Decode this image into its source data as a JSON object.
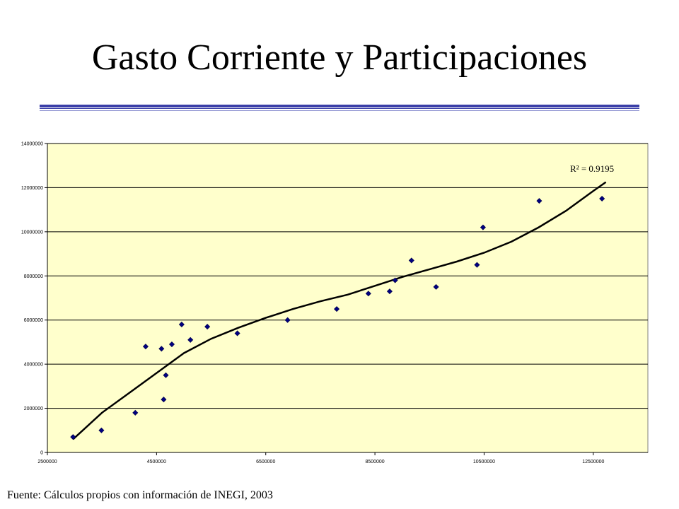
{
  "page": {
    "title": "Gasto Corriente y Participaciones",
    "source_note": "Fuente: Cálculos propios con información de INEGI, 2003"
  },
  "colors": {
    "plot_background": "#FFFFCC",
    "gridline": "#000000",
    "marker": "#000080",
    "trendline": "#000000",
    "title_rule": "#3B3FA8"
  },
  "chart_data": {
    "type": "scatter",
    "title": "",
    "xlabel": "",
    "ylabel": "",
    "xlim": [
      2500000,
      13500000
    ],
    "ylim": [
      0,
      14000000
    ],
    "x_ticks": [
      2500000,
      4500000,
      6500000,
      8500000,
      10500000,
      12500000
    ],
    "x_tick_labels": [
      "2500000",
      "4500000",
      "6500000",
      "8500000",
      "10500000",
      "12500000"
    ],
    "y_ticks": [
      0,
      2000000,
      4000000,
      6000000,
      8000000,
      10000000,
      12000000,
      14000000
    ],
    "y_tick_labels": [
      "0",
      "2000000",
      "4000000",
      "6000000",
      "8000000",
      "10000000",
      "12000000",
      "14000000"
    ],
    "grid": {
      "horizontal": true,
      "vertical": false
    },
    "legend": "none",
    "marker": "diamond",
    "points": [
      {
        "x": 2970000,
        "y": 700000
      },
      {
        "x": 3490000,
        "y": 1000000
      },
      {
        "x": 4110000,
        "y": 1800000
      },
      {
        "x": 4300000,
        "y": 4800000
      },
      {
        "x": 4590000,
        "y": 4700000
      },
      {
        "x": 4630000,
        "y": 2400000
      },
      {
        "x": 4670000,
        "y": 3500000
      },
      {
        "x": 4780000,
        "y": 4900000
      },
      {
        "x": 4960000,
        "y": 5800000
      },
      {
        "x": 5120000,
        "y": 5100000
      },
      {
        "x": 5430000,
        "y": 5700000
      },
      {
        "x": 5980000,
        "y": 5400000
      },
      {
        "x": 6900000,
        "y": 6000000
      },
      {
        "x": 7800000,
        "y": 6500000
      },
      {
        "x": 8380000,
        "y": 7200000
      },
      {
        "x": 8770000,
        "y": 7300000
      },
      {
        "x": 8870000,
        "y": 7800000
      },
      {
        "x": 9170000,
        "y": 8700000
      },
      {
        "x": 9620000,
        "y": 7500000
      },
      {
        "x": 10370000,
        "y": 8500000
      },
      {
        "x": 10480000,
        "y": 10200000
      },
      {
        "x": 11510000,
        "y": 11400000
      },
      {
        "x": 12660000,
        "y": 11500000
      }
    ],
    "trendline": {
      "type": "polynomial",
      "points": [
        {
          "x": 2970000,
          "y": 600000
        },
        {
          "x": 3500000,
          "y": 1800000
        },
        {
          "x": 4000000,
          "y": 2700000
        },
        {
          "x": 4500000,
          "y": 3600000
        },
        {
          "x": 5000000,
          "y": 4500000
        },
        {
          "x": 5500000,
          "y": 5150000
        },
        {
          "x": 6000000,
          "y": 5650000
        },
        {
          "x": 6500000,
          "y": 6100000
        },
        {
          "x": 7000000,
          "y": 6500000
        },
        {
          "x": 7500000,
          "y": 6850000
        },
        {
          "x": 8000000,
          "y": 7150000
        },
        {
          "x": 8500000,
          "y": 7550000
        },
        {
          "x": 9000000,
          "y": 7950000
        },
        {
          "x": 9500000,
          "y": 8300000
        },
        {
          "x": 10000000,
          "y": 8650000
        },
        {
          "x": 10500000,
          "y": 9050000
        },
        {
          "x": 11000000,
          "y": 9550000
        },
        {
          "x": 11500000,
          "y": 10200000
        },
        {
          "x": 12000000,
          "y": 10950000
        },
        {
          "x": 12500000,
          "y": 11850000
        },
        {
          "x": 12730000,
          "y": 12250000
        }
      ]
    },
    "annotation": "R² = 0.9195"
  }
}
